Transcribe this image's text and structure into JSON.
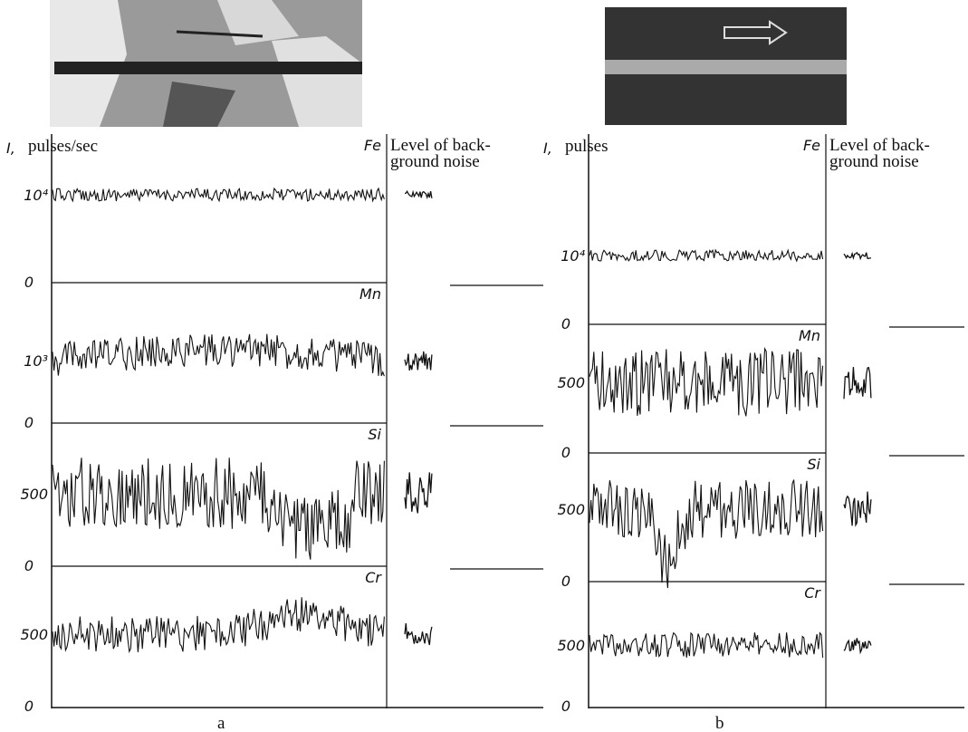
{
  "panels": [
    {
      "label": "a",
      "y_title": "I,",
      "y_unit": "pulses/sec",
      "noise_header": [
        "Level of back-",
        "ground noise"
      ],
      "rows": [
        {
          "element": "Fe",
          "level_tick": "10⁴",
          "zero_tick": "0"
        },
        {
          "element": "Mn",
          "level_tick": "10³",
          "zero_tick": "0"
        },
        {
          "element": "Si",
          "level_tick": "500",
          "zero_tick": "0"
        },
        {
          "element": "Cr",
          "level_tick": "500",
          "zero_tick": "0"
        }
      ]
    },
    {
      "label": "b",
      "y_title": "I,",
      "y_unit": "pulses",
      "noise_header": [
        "Level of back-",
        "ground noise"
      ],
      "rows": [
        {
          "element": "Fe",
          "level_tick": "10⁴",
          "zero_tick": "0"
        },
        {
          "element": "Mn",
          "level_tick": "500",
          "zero_tick": "0"
        },
        {
          "element": "Si",
          "level_tick": "500",
          "zero_tick": "0"
        },
        {
          "element": "Cr",
          "level_tick": "500",
          "zero_tick": "0"
        }
      ]
    }
  ]
}
